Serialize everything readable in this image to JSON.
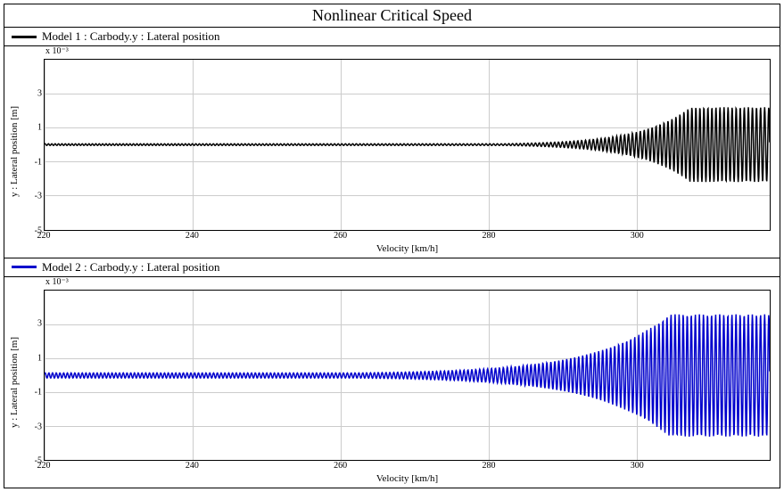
{
  "figure": {
    "title": "Nonlinear Critical Speed",
    "background_color": "#ffffff",
    "border_color": "#000000",
    "grid_color": "#cccccc",
    "title_fontsize": 18,
    "label_fontsize": 11,
    "tick_fontsize": 10
  },
  "subplots": [
    {
      "legend_text": "Model 1 : Carbody.y  : Lateral position",
      "line_color": "#000000",
      "line_width": 1.5,
      "ylabel": "y : Lateral position [m]",
      "xlabel": "Velocity [km/h]",
      "exp_label": "x 10⁻³",
      "xlim": [
        220,
        318
      ],
      "ylim": [
        -5,
        5
      ],
      "xticks": [
        220,
        240,
        260,
        280,
        300
      ],
      "yticks": [
        -5,
        -3,
        -1,
        1,
        3
      ],
      "series": {
        "type": "growing_oscillation",
        "baseline": 0,
        "noise_amp_start": 0.05,
        "growth_start_x": 282,
        "initial_freq": 2.2,
        "freq_drift": 0.004,
        "growth_rate": 0.15,
        "max_amp": 2.2
      }
    },
    {
      "legend_text": "Model 2 : Carbody.y  : Lateral position",
      "line_color": "#0000cc",
      "line_width": 1.5,
      "ylabel": "y : Lateral position [m]",
      "xlabel": "Velocity [km/h]",
      "exp_label": "x 10⁻³",
      "xlim": [
        220,
        318
      ],
      "ylim": [
        -5,
        5
      ],
      "xticks": [
        220,
        240,
        260,
        280,
        300
      ],
      "yticks": [
        -5,
        -3,
        -1,
        1,
        3
      ],
      "series": {
        "type": "growing_oscillation",
        "baseline": 0,
        "noise_amp_start": 0.15,
        "growth_start_x": 262,
        "initial_freq": 2.0,
        "freq_drift": 0.002,
        "growth_rate": 0.1,
        "max_amp": 3.6
      }
    }
  ]
}
